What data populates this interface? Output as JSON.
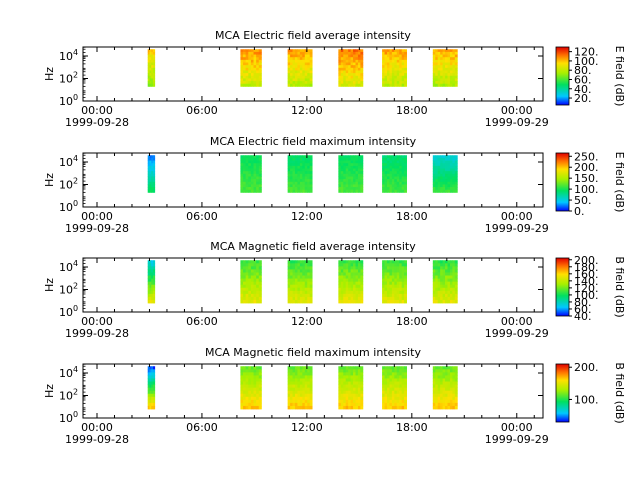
{
  "chart_data": [
    {
      "type": "heatmap",
      "title": "MCA  Electric field average intensity",
      "ylabel": "Hz",
      "ytick_labels": [
        {
          "base": "10",
          "exp": "0"
        },
        {
          "base": "10",
          "exp": "2"
        },
        {
          "base": "10",
          "exp": "4"
        }
      ],
      "ylim_log10": [
        0,
        4.8
      ],
      "colorbar": {
        "label": "E field (dB)",
        "ticks": [
          "20.",
          "40.",
          "60.",
          "80.",
          "100.",
          "120."
        ],
        "tick_values": [
          20,
          40,
          60,
          80,
          100,
          120
        ],
        "range": [
          5,
          130
        ]
      },
      "x_ticks": [
        {
          "time": "00:00",
          "date": "1999-09-28"
        },
        {
          "time": "06:00",
          "date": ""
        },
        {
          "time": "12:00",
          "date": ""
        },
        {
          "time": "18:00",
          "date": ""
        },
        {
          "time": "00:00",
          "date": "1999-09-29"
        }
      ],
      "xlim_hours": [
        -0.8,
        25.5
      ],
      "freq_range_log10": [
        1.3,
        4.6
      ],
      "segments": [
        {
          "start_h": 2.9,
          "end_h": 3.3,
          "low_db": 70,
          "high_db": 98
        },
        {
          "start_h": 8.2,
          "end_h": 9.4,
          "low_db": 80,
          "high_db": 108
        },
        {
          "start_h": 10.9,
          "end_h": 12.3,
          "low_db": 78,
          "high_db": 106
        },
        {
          "start_h": 13.8,
          "end_h": 15.2,
          "low_db": 85,
          "high_db": 112
        },
        {
          "start_h": 16.3,
          "end_h": 17.7,
          "low_db": 78,
          "high_db": 105
        },
        {
          "start_h": 19.2,
          "end_h": 20.6,
          "low_db": 76,
          "high_db": 103
        }
      ]
    },
    {
      "type": "heatmap",
      "title": "MCA  Electric field maximum intensity",
      "ylabel": "Hz",
      "ytick_labels": [
        {
          "base": "10",
          "exp": "0"
        },
        {
          "base": "10",
          "exp": "2"
        },
        {
          "base": "10",
          "exp": "4"
        }
      ],
      "ylim_log10": [
        0,
        4.8
      ],
      "colorbar": {
        "label": "E field (dB)",
        "ticks": [
          "0.",
          "50.",
          "100.",
          "150.",
          "200.",
          "250."
        ],
        "tick_values": [
          0,
          50,
          100,
          150,
          200,
          250
        ],
        "range": [
          0,
          265
        ]
      },
      "x_ticks": [
        {
          "time": "00:00",
          "date": "1999-09-28"
        },
        {
          "time": "06:00",
          "date": ""
        },
        {
          "time": "12:00",
          "date": ""
        },
        {
          "time": "18:00",
          "date": ""
        },
        {
          "time": "00:00",
          "date": "1999-09-29"
        }
      ],
      "xlim_hours": [
        -0.8,
        25.5
      ],
      "freq_range_log10": [
        1.3,
        4.6
      ],
      "segments": [
        {
          "start_h": 2.9,
          "end_h": 3.3,
          "low_db": 95,
          "high_db": 25
        },
        {
          "start_h": 8.2,
          "end_h": 9.4,
          "low_db": 115,
          "high_db": 95
        },
        {
          "start_h": 10.9,
          "end_h": 12.3,
          "low_db": 115,
          "high_db": 90
        },
        {
          "start_h": 13.8,
          "end_h": 15.2,
          "low_db": 115,
          "high_db": 92
        },
        {
          "start_h": 16.3,
          "end_h": 17.7,
          "low_db": 112,
          "high_db": 85
        },
        {
          "start_h": 19.2,
          "end_h": 20.6,
          "low_db": 110,
          "high_db": 55
        }
      ]
    },
    {
      "type": "heatmap",
      "title": "MCA  Magnetic field average intensity",
      "ylabel": "Hz",
      "ytick_labels": [
        {
          "base": "10",
          "exp": "0"
        },
        {
          "base": "10",
          "exp": "2"
        },
        {
          "base": "10",
          "exp": "4"
        }
      ],
      "ylim_log10": [
        0,
        4.8
      ],
      "colorbar": {
        "label": "B field (dB)",
        "ticks": [
          "40.",
          "60.",
          "80.",
          "100.",
          "120.",
          "140.",
          "160.",
          "180.",
          "200."
        ],
        "tick_values": [
          40,
          60,
          80,
          100,
          120,
          140,
          160,
          180,
          200
        ],
        "range": [
          40,
          205
        ]
      },
      "x_ticks": [
        {
          "time": "00:00",
          "date": "1999-09-28"
        },
        {
          "time": "06:00",
          "date": ""
        },
        {
          "time": "12:00",
          "date": ""
        },
        {
          "time": "18:00",
          "date": ""
        },
        {
          "time": "00:00",
          "date": "1999-09-29"
        }
      ],
      "xlim_hours": [
        -0.8,
        25.5
      ],
      "freq_range_log10": [
        0.8,
        4.6
      ],
      "segments": [
        {
          "start_h": 2.9,
          "end_h": 3.3,
          "low_db": 150,
          "high_db": 70
        },
        {
          "start_h": 8.2,
          "end_h": 9.4,
          "low_db": 150,
          "high_db": 108
        },
        {
          "start_h": 10.9,
          "end_h": 12.3,
          "low_db": 148,
          "high_db": 106
        },
        {
          "start_h": 13.8,
          "end_h": 15.2,
          "low_db": 150,
          "high_db": 108
        },
        {
          "start_h": 16.3,
          "end_h": 17.7,
          "low_db": 148,
          "high_db": 108
        },
        {
          "start_h": 19.2,
          "end_h": 20.6,
          "low_db": 148,
          "high_db": 106
        }
      ]
    },
    {
      "type": "heatmap",
      "title": "MCA  Magnetic field maximum intensity",
      "ylabel": "Hz",
      "ytick_labels": [
        {
          "base": "10",
          "exp": "0"
        },
        {
          "base": "10",
          "exp": "2"
        },
        {
          "base": "10",
          "exp": "4"
        }
      ],
      "ylim_log10": [
        0,
        4.8
      ],
      "colorbar": {
        "label": "B field (dB)",
        "ticks": [
          "100.",
          "200."
        ],
        "tick_values": [
          100,
          200
        ],
        "range": [
          30,
          210
        ]
      },
      "x_ticks": [
        {
          "time": "00:00",
          "date": "1999-09-28"
        },
        {
          "time": "06:00",
          "date": ""
        },
        {
          "time": "12:00",
          "date": ""
        },
        {
          "time": "18:00",
          "date": ""
        },
        {
          "time": "00:00",
          "date": "1999-09-29"
        }
      ],
      "xlim_hours": [
        -0.8,
        25.5
      ],
      "freq_range_log10": [
        0.8,
        4.6
      ],
      "segments": [
        {
          "start_h": 2.9,
          "end_h": 3.3,
          "low_db": 165,
          "high_db": 40
        },
        {
          "start_h": 8.2,
          "end_h": 9.4,
          "low_db": 165,
          "high_db": 115
        },
        {
          "start_h": 10.9,
          "end_h": 12.3,
          "low_db": 165,
          "high_db": 115
        },
        {
          "start_h": 13.8,
          "end_h": 15.2,
          "low_db": 165,
          "high_db": 115
        },
        {
          "start_h": 16.3,
          "end_h": 17.7,
          "low_db": 165,
          "high_db": 115
        },
        {
          "start_h": 19.2,
          "end_h": 20.6,
          "low_db": 165,
          "high_db": 115
        }
      ]
    }
  ]
}
